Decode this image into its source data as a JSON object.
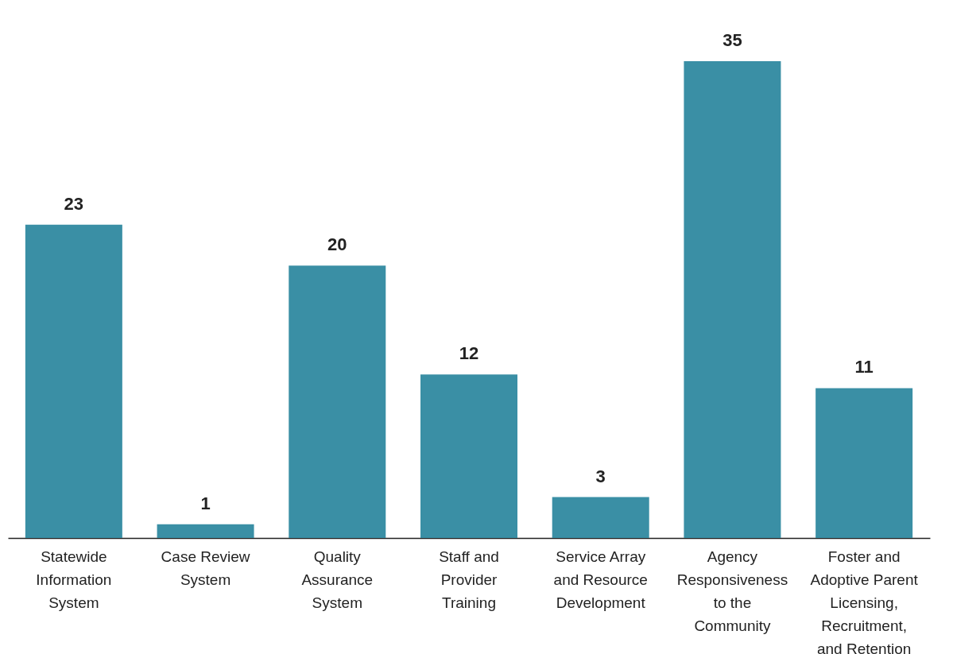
{
  "chart_data": {
    "type": "bar",
    "categories": [
      "Statewide Information System",
      "Case Review System",
      "Quality Assurance System",
      "Staff and Provider Training",
      "Service Array and Resource Development",
      "Agency Responsiveness to the Community",
      "Foster and Adoptive Parent Licensing, Recruitment, and Retention"
    ],
    "values": [
      23,
      1,
      20,
      12,
      3,
      35,
      11
    ],
    "color": "#3a8fa5",
    "data_labels": true
  }
}
